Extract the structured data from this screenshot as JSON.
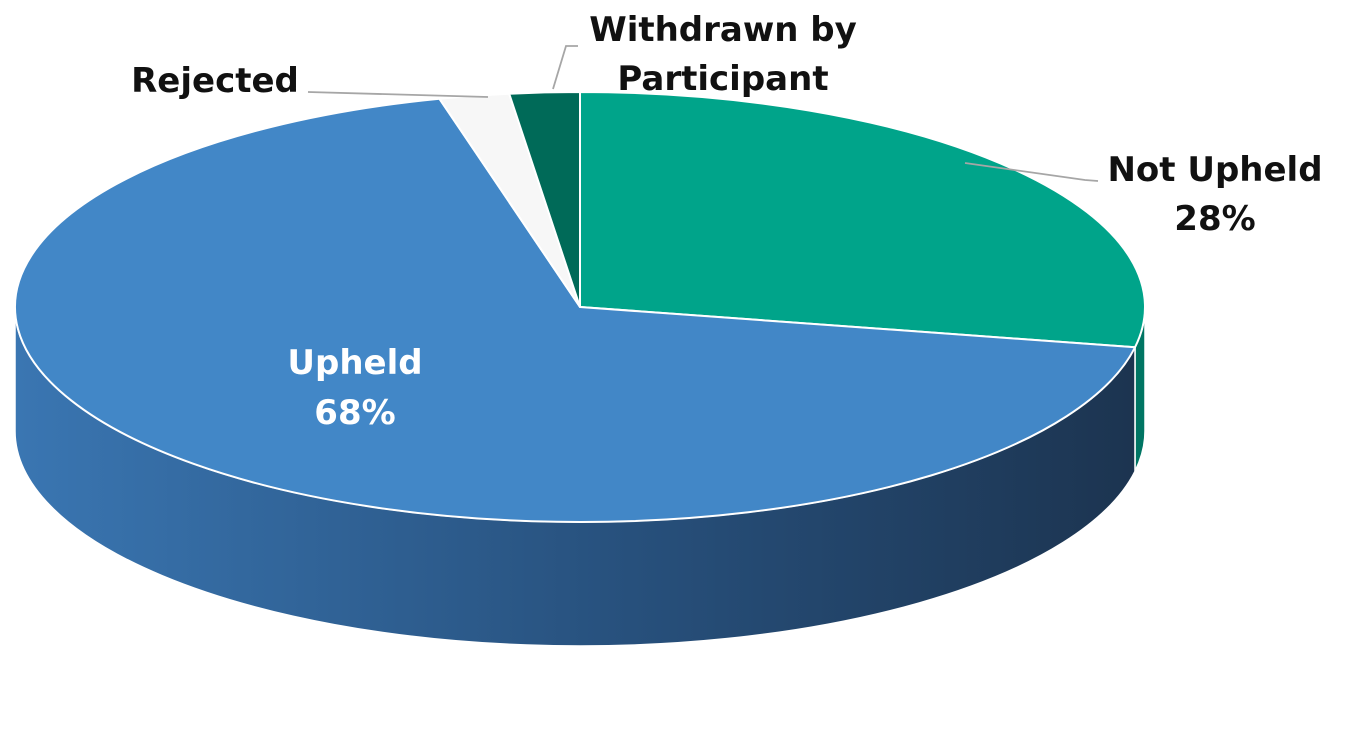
{
  "chart_data": {
    "type": "pie",
    "slices": [
      {
        "name": "Not Upheld",
        "value": 28,
        "value_label": "28%",
        "color": "#00a48a",
        "side_color": "#007563"
      },
      {
        "name": "Upheld",
        "value": 68,
        "value_label": "68%",
        "color": "#4287c7",
        "side_color": "#2a5684"
      },
      {
        "name": "Rejected",
        "value": 2,
        "color": "#f7f7f7",
        "side_color": "#cfcfcf"
      },
      {
        "name": "Withdrawn by Participant",
        "value": 2,
        "color": "#006a58",
        "side_color": "#004a3e"
      }
    ],
    "labels": {
      "not_upheld_name": "Not Upheld",
      "not_upheld_value": "28%",
      "upheld_name": "Upheld",
      "upheld_value": "68%",
      "rejected_name": "Rejected",
      "withdrawn_line1": "Withdrawn by",
      "withdrawn_line2": "Participant"
    },
    "style": "3d-pie",
    "legend": "none"
  }
}
